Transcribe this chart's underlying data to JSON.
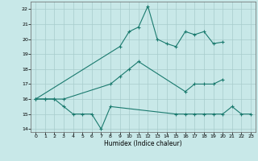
{
  "xlabel": "Humidex (Indice chaleur)",
  "line1_x": [
    0,
    1,
    2,
    3,
    4,
    5,
    6,
    7,
    8,
    15,
    16,
    17,
    18,
    19,
    20,
    21,
    22,
    23
  ],
  "line1_y": [
    16,
    16,
    16,
    15.5,
    15,
    15,
    15,
    14,
    15.5,
    15,
    15,
    15,
    15,
    15,
    15,
    15.5,
    15,
    15
  ],
  "line2_x": [
    0,
    1,
    2,
    3,
    8,
    9,
    10,
    11,
    16,
    17,
    18,
    19,
    20
  ],
  "line2_y": [
    16,
    16,
    16,
    16,
    17,
    17.5,
    18,
    18.5,
    16.5,
    17,
    17,
    17,
    17.3
  ],
  "line3_x": [
    0,
    9,
    10,
    11,
    12,
    13,
    14,
    15,
    16,
    17,
    18,
    19,
    20
  ],
  "line3_y": [
    16,
    19.5,
    20.5,
    20.8,
    22.2,
    20,
    19.7,
    19.5,
    20.5,
    20.3,
    20.5,
    19.7,
    19.8
  ],
  "color": "#1a7a6e",
  "bg_color": "#c8e8e8",
  "grid_color": "#a8cccc",
  "ylim": [
    13.8,
    22.5
  ],
  "xlim": [
    -0.5,
    23.5
  ],
  "yticks": [
    14,
    15,
    16,
    17,
    18,
    19,
    20,
    21,
    22
  ],
  "xticks": [
    0,
    1,
    2,
    3,
    4,
    5,
    6,
    7,
    8,
    9,
    10,
    11,
    12,
    13,
    14,
    15,
    16,
    17,
    18,
    19,
    20,
    21,
    22,
    23
  ]
}
